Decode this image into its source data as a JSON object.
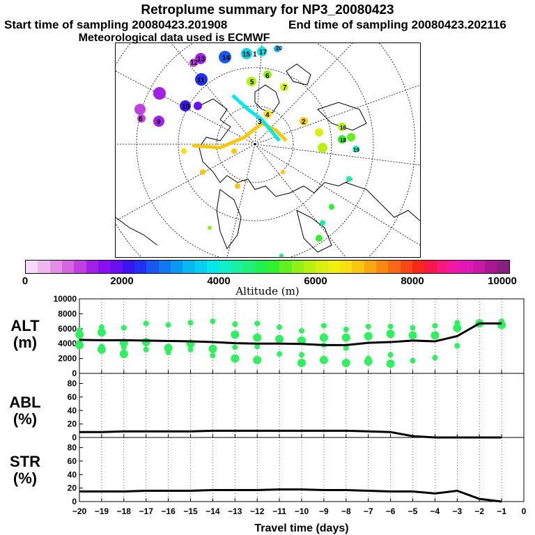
{
  "header": {
    "title": "Retroplume summary for NP3_20080423",
    "start": "Start time of sampling 20080423.201908",
    "end": "End time of sampling 20080423.202116",
    "met": "Meteorological data used is ECMWF"
  },
  "colorbar": {
    "label": "Altitude (m)",
    "tick_labels": [
      "0",
      "2000",
      "4000",
      "6000",
      "8000",
      "10000"
    ],
    "colors": [
      "#f6dcf6",
      "#efb8ef",
      "#e48fe6",
      "#d865e0",
      "#c040e0",
      "#a020e8",
      "#8a10f0",
      "#6a10f0",
      "#3c14f0",
      "#2030f0",
      "#1858f0",
      "#1078f0",
      "#0a98f0",
      "#08b8f0",
      "#06d0f0",
      "#06e8e8",
      "#10f0c8",
      "#18f0a0",
      "#20f078",
      "#20f050",
      "#30f030",
      "#60f020",
      "#90f018",
      "#b8f010",
      "#d8f010",
      "#f0f010",
      "#f8e010",
      "#f8c810",
      "#f8a810",
      "#f88810",
      "#f86818",
      "#f84818",
      "#f82818",
      "#f81848",
      "#f81880",
      "#f018a8",
      "#e018b8",
      "#c818a8",
      "#a81890",
      "#882080"
    ]
  },
  "map": {
    "labels": [
      {
        "t": "14"
      },
      {
        "t": "15"
      },
      {
        "t": "1"
      },
      {
        "t": "17"
      },
      {
        "t": "20"
      },
      {
        "t": "13"
      },
      {
        "t": "12"
      },
      {
        "t": "11"
      },
      {
        "t": "10"
      },
      {
        "t": "9"
      },
      {
        "t": "8"
      },
      {
        "t": "6"
      },
      {
        "t": "5"
      },
      {
        "t": "7"
      },
      {
        "t": "4"
      },
      {
        "t": "3"
      },
      {
        "t": "2"
      },
      {
        "t": "19"
      },
      {
        "t": "18"
      },
      {
        "t": "16"
      }
    ]
  },
  "chart_data": [
    {
      "type": "line",
      "panel": "ALT",
      "ylabel": "ALT (m)",
      "ylabel_lines": [
        "ALT",
        "(m)"
      ],
      "x": [
        -20,
        -19,
        -18,
        -17,
        -16,
        -15,
        -14,
        -13,
        -12,
        -11,
        -10,
        -9,
        -8,
        -7,
        -6,
        -5,
        -4,
        -3,
        -2,
        -1
      ],
      "series": [
        {
          "name": "mean altitude",
          "values": [
            4500,
            4450,
            4450,
            4400,
            4350,
            4300,
            4200,
            4050,
            4000,
            4000,
            3950,
            3800,
            3800,
            4100,
            4200,
            4400,
            4300,
            5000,
            6700,
            6700
          ]
        }
      ],
      "clusters": [
        {
          "x": -20,
          "y": [
            5800,
            5200,
            4200,
            3800
          ]
        },
        {
          "x": -19,
          "y": [
            6200,
            5500,
            3600,
            3200
          ]
        },
        {
          "x": -18,
          "y": [
            6100,
            4100,
            3500,
            2600
          ]
        },
        {
          "x": -17,
          "y": [
            6700,
            4200,
            3200
          ]
        },
        {
          "x": -16,
          "y": [
            6500,
            3400,
            2800
          ]
        },
        {
          "x": -15,
          "y": [
            6800,
            4000,
            3200
          ]
        },
        {
          "x": -14,
          "y": [
            7000,
            3300,
            2400
          ]
        },
        {
          "x": -13,
          "y": [
            6600,
            5200,
            3500,
            2000
          ]
        },
        {
          "x": -12,
          "y": [
            6700,
            4800,
            3600,
            1800
          ]
        },
        {
          "x": -11,
          "y": [
            6200,
            4600,
            2600
          ]
        },
        {
          "x": -10,
          "y": [
            5700,
            4400,
            2500,
            1400
          ]
        },
        {
          "x": -9,
          "y": [
            6400,
            4800,
            3800,
            1800
          ]
        },
        {
          "x": -8,
          "y": [
            5900,
            4800,
            3400,
            1400
          ]
        },
        {
          "x": -7,
          "y": [
            6300,
            5000,
            2000,
            1600
          ]
        },
        {
          "x": -6,
          "y": [
            6300,
            5300,
            2500,
            1300
          ]
        },
        {
          "x": -5,
          "y": [
            6100,
            5100,
            1700
          ]
        },
        {
          "x": -4,
          "y": [
            6400,
            5100,
            2100
          ]
        },
        {
          "x": -3,
          "y": [
            6800,
            6100,
            3700
          ]
        },
        {
          "x": -2,
          "y": [
            6900,
            6700
          ]
        },
        {
          "x": -1,
          "y": [
            7000,
            6500
          ]
        }
      ],
      "ylim": [
        0,
        10000
      ],
      "yticks": [
        "0",
        "2000",
        "4000",
        "6000",
        "8000",
        "10000"
      ],
      "xlim": [
        -20,
        0
      ]
    },
    {
      "type": "line",
      "panel": "ABL",
      "ylabel": "ABL (%)",
      "ylabel_lines": [
        "ABL",
        "(%)"
      ],
      "x": [
        -20,
        -19,
        -18,
        -17,
        -16,
        -15,
        -14,
        -13,
        -12,
        -11,
        -10,
        -9,
        -8,
        -7,
        -6,
        -5,
        -4,
        -3,
        -2,
        -1
      ],
      "series": [
        {
          "name": "ABL fraction",
          "values": [
            8,
            8,
            9,
            9,
            9,
            9,
            10,
            10,
            10,
            10,
            10,
            10,
            10,
            9,
            8,
            2,
            0,
            0,
            0,
            0
          ]
        }
      ],
      "ylim": [
        0,
        95
      ],
      "yticks": [
        "0",
        "20",
        "40",
        "60",
        "80"
      ],
      "xlim": [
        -20,
        0
      ]
    },
    {
      "type": "line",
      "panel": "STR",
      "ylabel": "STR (%)",
      "ylabel_lines": [
        "STR",
        "(%)"
      ],
      "x": [
        -20,
        -19,
        -18,
        -17,
        -16,
        -15,
        -14,
        -13,
        -12,
        -11,
        -10,
        -9,
        -8,
        -7,
        -6,
        -5,
        -4,
        -3,
        -2,
        -1
      ],
      "series": [
        {
          "name": "stratospheric fraction",
          "values": [
            15,
            15,
            15,
            16,
            16,
            16,
            17,
            17,
            17,
            18,
            18,
            17,
            17,
            16,
            15,
            15,
            12,
            16,
            4,
            0
          ]
        }
      ],
      "ylim": [
        0,
        95
      ],
      "yticks": [
        "0",
        "20",
        "40",
        "60",
        "80"
      ],
      "xlim": [
        -20,
        0
      ],
      "xlabel": "Travel time (days)",
      "xticks": [
        "−20",
        "−19",
        "−18",
        "−17",
        "−16",
        "−15",
        "−14",
        "−13",
        "−12",
        "−11",
        "−10",
        "−9",
        "−8",
        "−7",
        "−6",
        "−5",
        "−4",
        "−3",
        "−2",
        "−1",
        "0"
      ]
    }
  ]
}
